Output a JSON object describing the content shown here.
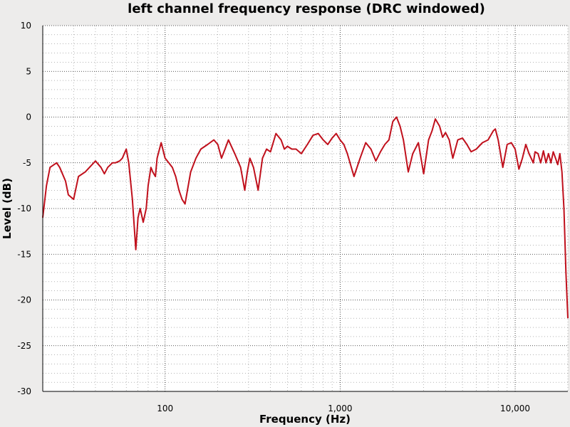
{
  "chart_data": {
    "type": "line",
    "title": "left channel frequency response (DRC windowed)",
    "xlabel": "Frequency (Hz)",
    "ylabel": "Level (dB)",
    "x_scale": "log",
    "xlim": [
      20,
      20000
    ],
    "ylim": [
      -30,
      10
    ],
    "x_ticks": [
      100,
      1000,
      10000
    ],
    "x_tick_labels": [
      "100",
      "1,000",
      "10,000"
    ],
    "y_ticks": [
      -30,
      -25,
      -20,
      -15,
      -10,
      -5,
      0,
      5,
      10
    ],
    "y_tick_labels": [
      "-30",
      "-25",
      "-20",
      "-15",
      "-10",
      "-5",
      "0",
      "5",
      "10"
    ],
    "grid": true,
    "line_color": "#c0101c",
    "series": [
      {
        "x": [
          20,
          21,
          22,
          24,
          25,
          27,
          28,
          30,
          32,
          35,
          37,
          40,
          43,
          45,
          47,
          50,
          52,
          55,
          57,
          60,
          62,
          65,
          68,
          70,
          72,
          75,
          78,
          80,
          83,
          85,
          88,
          90,
          95,
          100,
          105,
          110,
          115,
          120,
          125,
          130,
          140,
          150,
          160,
          175,
          190,
          200,
          210,
          220,
          230,
          250,
          270,
          285,
          295,
          305,
          320,
          340,
          360,
          380,
          400,
          430,
          460,
          480,
          500,
          530,
          560,
          600,
          650,
          700,
          750,
          800,
          850,
          900,
          950,
          1000,
          1050,
          1100,
          1200,
          1300,
          1400,
          1500,
          1600,
          1700,
          1800,
          1900,
          2000,
          2100,
          2200,
          2300,
          2450,
          2600,
          2800,
          3000,
          3200,
          3350,
          3500,
          3700,
          3850,
          4000,
          4200,
          4400,
          4700,
          5000,
          5300,
          5600,
          6000,
          6500,
          7000,
          7500,
          7700,
          8000,
          8500,
          9000,
          9500,
          10000,
          10500,
          11000,
          11500,
          12000,
          12700,
          13000,
          13500,
          14000,
          14500,
          15000,
          15500,
          16000,
          16500,
          17000,
          17500,
          18000,
          18500,
          19000,
          19500,
          20000
        ],
        "y": [
          -11,
          -7.5,
          -5.5,
          -5,
          -5.5,
          -7,
          -8.5,
          -9,
          -6.5,
          -6,
          -5.5,
          -4.8,
          -5.5,
          -6.2,
          -5.5,
          -5,
          -5,
          -4.8,
          -4.5,
          -3.5,
          -5,
          -9,
          -14.5,
          -11,
          -10,
          -11.5,
          -10,
          -7.5,
          -5.5,
          -6,
          -6.5,
          -4.5,
          -2.8,
          -4.5,
          -5,
          -5.5,
          -6.5,
          -8,
          -9,
          -9.5,
          -6,
          -4.5,
          -3.5,
          -3,
          -2.5,
          -3,
          -4.5,
          -3.5,
          -2.5,
          -4,
          -5.5,
          -8,
          -6,
          -4.5,
          -5.5,
          -8,
          -4.5,
          -3.5,
          -3.8,
          -1.8,
          -2.5,
          -3.5,
          -3.2,
          -3.5,
          -3.5,
          -4,
          -3,
          -2,
          -1.8,
          -2.5,
          -3,
          -2.3,
          -1.8,
          -2.5,
          -3,
          -4,
          -6.5,
          -4.5,
          -2.8,
          -3.5,
          -4.8,
          -3.8,
          -3,
          -2.5,
          -0.5,
          0,
          -1,
          -2.5,
          -6,
          -4,
          -2.8,
          -6.2,
          -2.5,
          -1.5,
          -0.2,
          -1,
          -2.2,
          -1.7,
          -2.5,
          -4.5,
          -2.5,
          -2.3,
          -3,
          -3.8,
          -3.5,
          -2.8,
          -2.5,
          -1.5,
          -1.3,
          -2.5,
          -5.5,
          -3,
          -2.8,
          -3.5,
          -5.7,
          -4.5,
          -3,
          -4,
          -5,
          -3.8,
          -4,
          -5,
          -3.7,
          -5,
          -4,
          -5,
          -3.8,
          -4.5,
          -5.2,
          -4,
          -6,
          -10,
          -17,
          -22
        ]
      }
    ]
  }
}
